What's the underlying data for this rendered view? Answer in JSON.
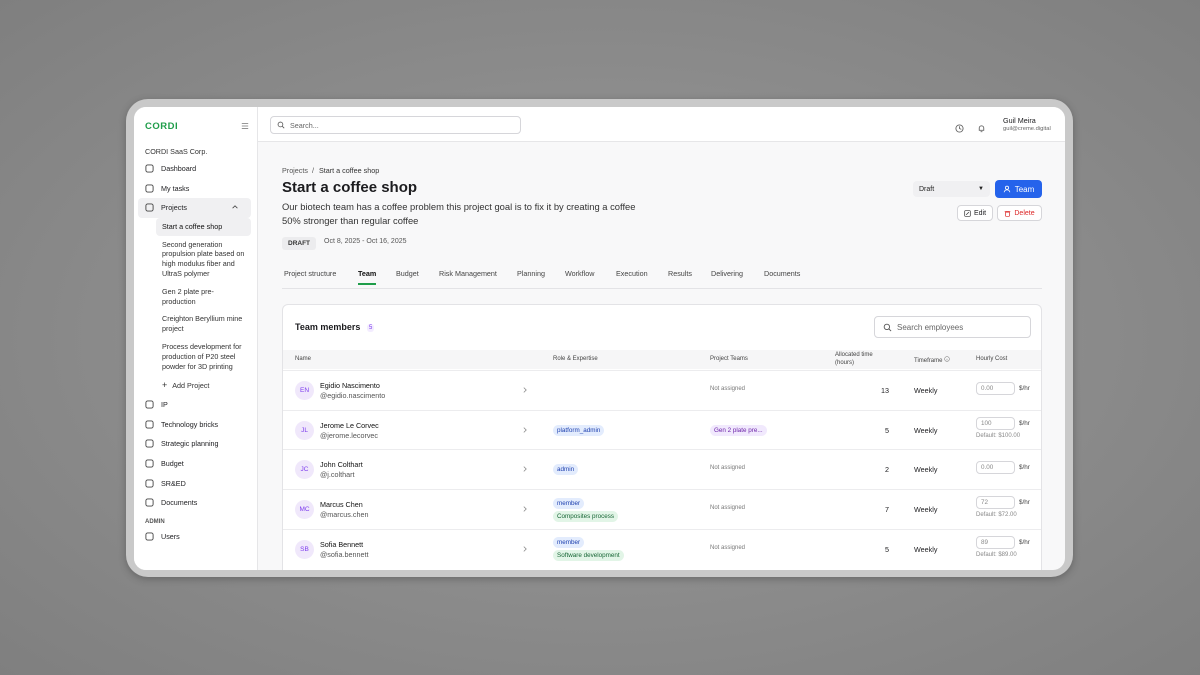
{
  "sidebar": {
    "logo": "CORDI",
    "org": "CORDI SaaS Corp.",
    "nav_top": [
      "Dashboard",
      "My tasks",
      "Projects"
    ],
    "projects": [
      "Start a coffee shop",
      "Second generation propulsion plate based on high modulus fiber and UltraS polymer",
      "Gen 2 plate pre-production",
      "Creighton Beryllium mine project",
      "Process development for production of P20 steel powder for 3D printing"
    ],
    "add_project": "Add Project",
    "nav_bottom": [
      "IP",
      "Technology bricks",
      "Strategic planning",
      "Budget",
      "SR&ED",
      "Documents"
    ],
    "admin_label": "ADMIN",
    "admin": [
      "Users"
    ]
  },
  "topbar": {
    "search": "Search...",
    "user_name": "Guil Meira",
    "user_email": "guil@creme.digital"
  },
  "project": {
    "breadcrumb": [
      "Projects",
      "Start a coffee shop"
    ],
    "separator": "/",
    "title": "Start a coffee shop",
    "description": "Our biotech team has a coffee problem this project goal is to fix it by creating a coffee 50% stronger than regular coffee",
    "status": "DRAFT",
    "dates": "Oct 8, 2025 - Oct 16, 2025",
    "status_select": "Draft",
    "team_button": "Team",
    "edit": "Edit",
    "delete": "Delete"
  },
  "tabs": [
    "Project structure",
    "Team",
    "Budget",
    "Risk Management",
    "Planning",
    "Workflow",
    "Execution",
    "Results",
    "Delivering",
    "Documents"
  ],
  "team": {
    "title": "Team members",
    "count": 5,
    "search": "Search employees",
    "columns": [
      "Name",
      "Role & Expertise",
      "Project Teams",
      "Allocated time (hours)",
      "Timeframe",
      "Hourly Cost"
    ],
    "rows": [
      {
        "initials": "EN",
        "name": "Egidio Nascimento",
        "handle": "@egidio.nascimento",
        "roles": [],
        "expertise": [],
        "project_teams": "Not assigned",
        "allocated": 13,
        "timeframe": "Weekly",
        "rate": "0.00",
        "unit": "$/hr",
        "default": null
      },
      {
        "initials": "JL",
        "name": "Jerome Le Corvec",
        "handle": "@jerome.lecorvec",
        "roles": [
          "platform_admin"
        ],
        "expertise": [],
        "project_teams": "Gen 2 plate pre...",
        "allocated": 5,
        "timeframe": "Weekly",
        "rate": "100",
        "unit": "$/hr",
        "default": "Default: $100.00"
      },
      {
        "initials": "JC",
        "name": "John Colthart",
        "handle": "@j.colthart",
        "roles": [
          "admin"
        ],
        "expertise": [],
        "project_teams": "Not assigned",
        "allocated": 2,
        "timeframe": "Weekly",
        "rate": "0.00",
        "unit": "$/hr",
        "default": null
      },
      {
        "initials": "MC",
        "name": "Marcus Chen",
        "handle": "@marcus.chen",
        "roles": [
          "member"
        ],
        "expertise": [
          "Composites process"
        ],
        "project_teams": "Not assigned",
        "allocated": 7,
        "timeframe": "Weekly",
        "rate": "72",
        "unit": "$/hr",
        "default": "Default: $72.00"
      },
      {
        "initials": "SB",
        "name": "Sofia Bennett",
        "handle": "@sofia.bennett",
        "roles": [
          "member"
        ],
        "expertise": [
          "Software development"
        ],
        "project_teams": "Not assigned",
        "allocated": 5,
        "timeframe": "Weekly",
        "rate": "89",
        "unit": "$/hr",
        "default": "Default: $89.00"
      }
    ]
  }
}
